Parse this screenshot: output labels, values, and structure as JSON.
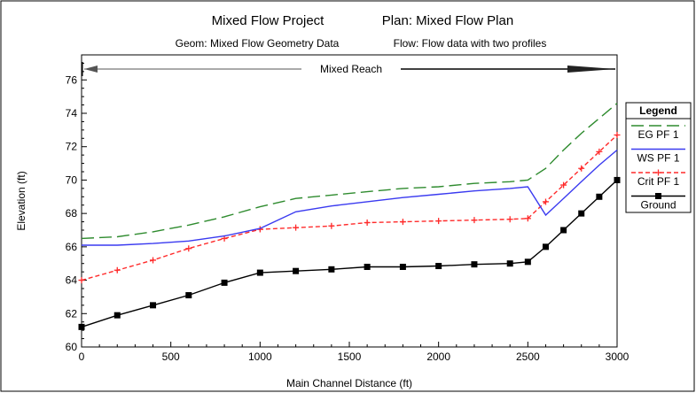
{
  "chart_data": {
    "type": "line",
    "title": "Mixed Flow Project",
    "plan": "Plan: Mixed Flow Plan",
    "geom": "Geom: Mixed Flow Geometry Data",
    "flow": "Flow: Flow data with two profiles",
    "reach_label": "Mixed Reach",
    "xlabel": "Main Channel Distance (ft)",
    "ylabel": "Elevation (ft)",
    "xlim": [
      0,
      3000
    ],
    "ylim": [
      60,
      77.5
    ],
    "xticks": [
      0,
      500,
      1000,
      1500,
      2000,
      2500,
      3000
    ],
    "yticks": [
      60,
      62,
      64,
      66,
      68,
      70,
      72,
      74,
      76
    ],
    "legend": {
      "title": "Legend",
      "position": "right",
      "entries": [
        "EG  PF 1",
        "WS  PF 1",
        "Crit  PF 1",
        "Ground"
      ]
    },
    "series": [
      {
        "name": "EG  PF 1",
        "color": "#2e8b2e",
        "style": "dashed",
        "x": [
          0,
          200,
          400,
          600,
          800,
          1000,
          1200,
          1400,
          1600,
          1800,
          2000,
          2200,
          2400,
          2500,
          2600,
          2700,
          2800,
          2900,
          3000
        ],
        "y": [
          66.5,
          66.6,
          66.9,
          67.3,
          67.8,
          68.4,
          68.9,
          69.1,
          69.3,
          69.5,
          69.6,
          69.8,
          69.9,
          70.0,
          70.7,
          71.8,
          72.8,
          73.7,
          74.6
        ]
      },
      {
        "name": "WS  PF 1",
        "color": "#3a3af0",
        "style": "solid",
        "x": [
          0,
          200,
          400,
          600,
          800,
          1000,
          1200,
          1400,
          1600,
          1800,
          2000,
          2200,
          2400,
          2500,
          2600,
          2700,
          2800,
          2900,
          3000
        ],
        "y": [
          66.1,
          66.1,
          66.2,
          66.35,
          66.65,
          67.1,
          68.1,
          68.45,
          68.7,
          68.95,
          69.15,
          69.35,
          69.5,
          69.6,
          67.9,
          68.9,
          69.9,
          70.9,
          71.8
        ]
      },
      {
        "name": "Crit  PF 1",
        "color": "#ff2a2a",
        "style": "dashed-plus",
        "x": [
          0,
          200,
          400,
          600,
          800,
          1000,
          1200,
          1400,
          1600,
          1800,
          2000,
          2200,
          2400,
          2500,
          2600,
          2700,
          2800,
          2900,
          3000
        ],
        "y": [
          64.0,
          64.6,
          65.2,
          65.9,
          66.5,
          67.05,
          67.15,
          67.25,
          67.45,
          67.5,
          67.55,
          67.6,
          67.65,
          67.7,
          68.7,
          69.7,
          70.7,
          71.7,
          72.7
        ]
      },
      {
        "name": "Ground",
        "color": "#000000",
        "style": "solid-square",
        "x": [
          0,
          200,
          400,
          600,
          800,
          1000,
          1200,
          1400,
          1600,
          1800,
          2000,
          2200,
          2400,
          2500,
          2600,
          2700,
          2800,
          2900,
          3000
        ],
        "y": [
          61.2,
          61.9,
          62.5,
          63.1,
          63.85,
          64.45,
          64.55,
          64.65,
          64.8,
          64.8,
          64.85,
          64.95,
          65.0,
          65.1,
          66.0,
          67.0,
          68.0,
          69.0,
          70.0
        ]
      }
    ]
  }
}
